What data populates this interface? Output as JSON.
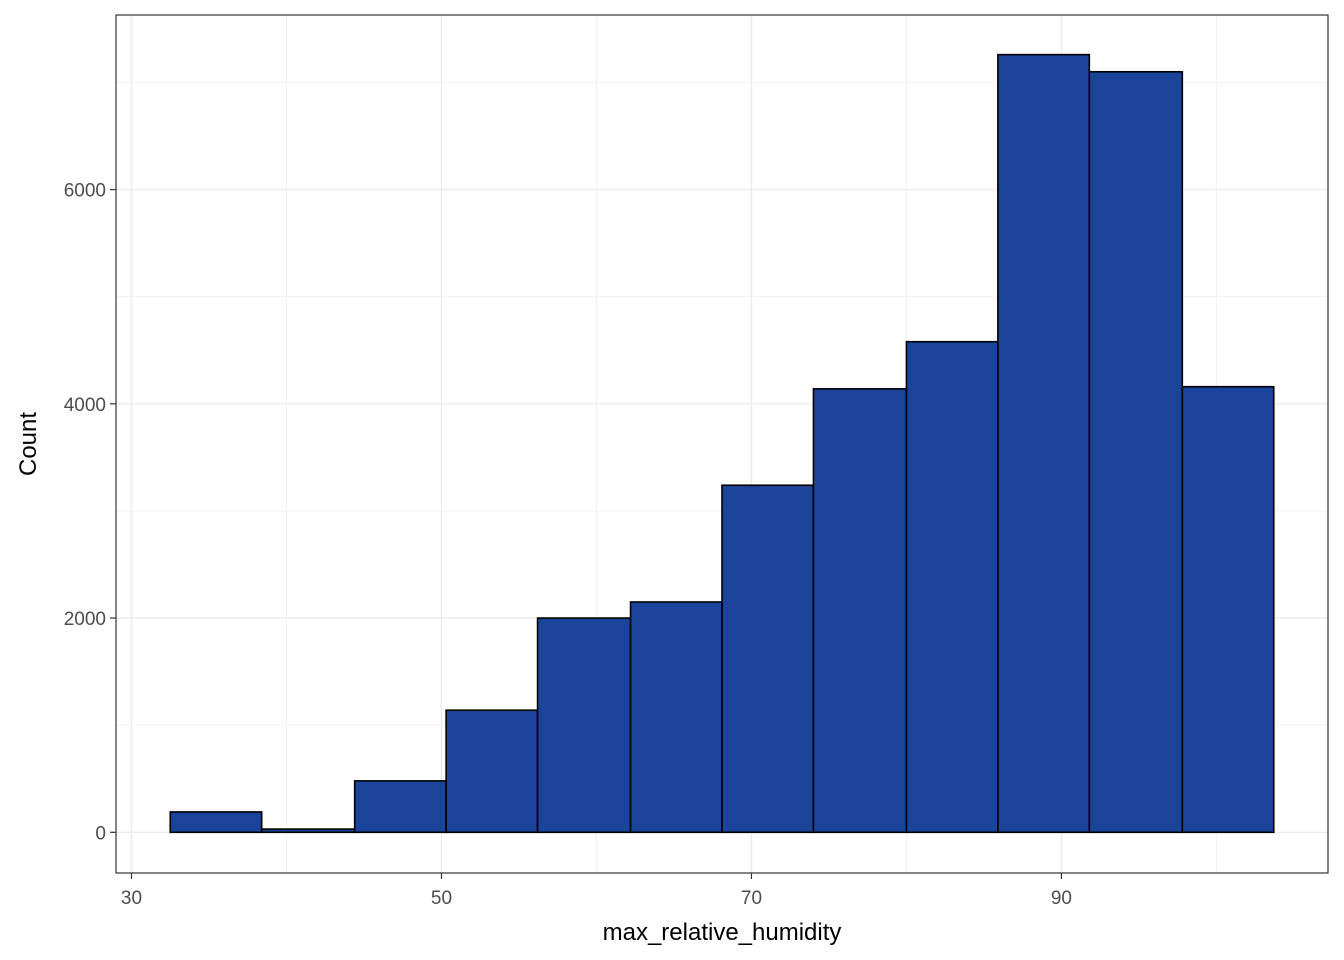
{
  "chart_data": {
    "type": "bar",
    "subtype": "histogram",
    "title": "",
    "xlabel": "max_relative_humidity",
    "ylabel": "Count",
    "bins": [
      {
        "x0": 32.5,
        "x1": 38.4,
        "count": 190
      },
      {
        "x0": 38.4,
        "x1": 44.4,
        "count": 30
      },
      {
        "x0": 44.4,
        "x1": 50.3,
        "count": 480
      },
      {
        "x0": 50.3,
        "x1": 56.2,
        "count": 1140
      },
      {
        "x0": 56.2,
        "x1": 62.2,
        "count": 2000
      },
      {
        "x0": 62.2,
        "x1": 68.1,
        "count": 2150
      },
      {
        "x0": 68.1,
        "x1": 74.0,
        "count": 3240
      },
      {
        "x0": 74.0,
        "x1": 80.0,
        "count": 4140
      },
      {
        "x0": 80.0,
        "x1": 85.9,
        "count": 4580
      },
      {
        "x0": 85.9,
        "x1": 91.8,
        "count": 7260
      },
      {
        "x0": 91.8,
        "x1": 97.8,
        "count": 7100
      },
      {
        "x0": 97.8,
        "x1": 103.7,
        "count": 4160
      }
    ],
    "xlim": [
      29.0,
      107.2
    ],
    "ylim": [
      -380,
      7630
    ],
    "x_ticks": [
      30,
      50,
      70,
      90
    ],
    "y_ticks": [
      0,
      2000,
      4000,
      6000
    ],
    "bar_fill": "#1a4499",
    "bar_stroke": "#000000",
    "grid": true,
    "legend": "none"
  }
}
